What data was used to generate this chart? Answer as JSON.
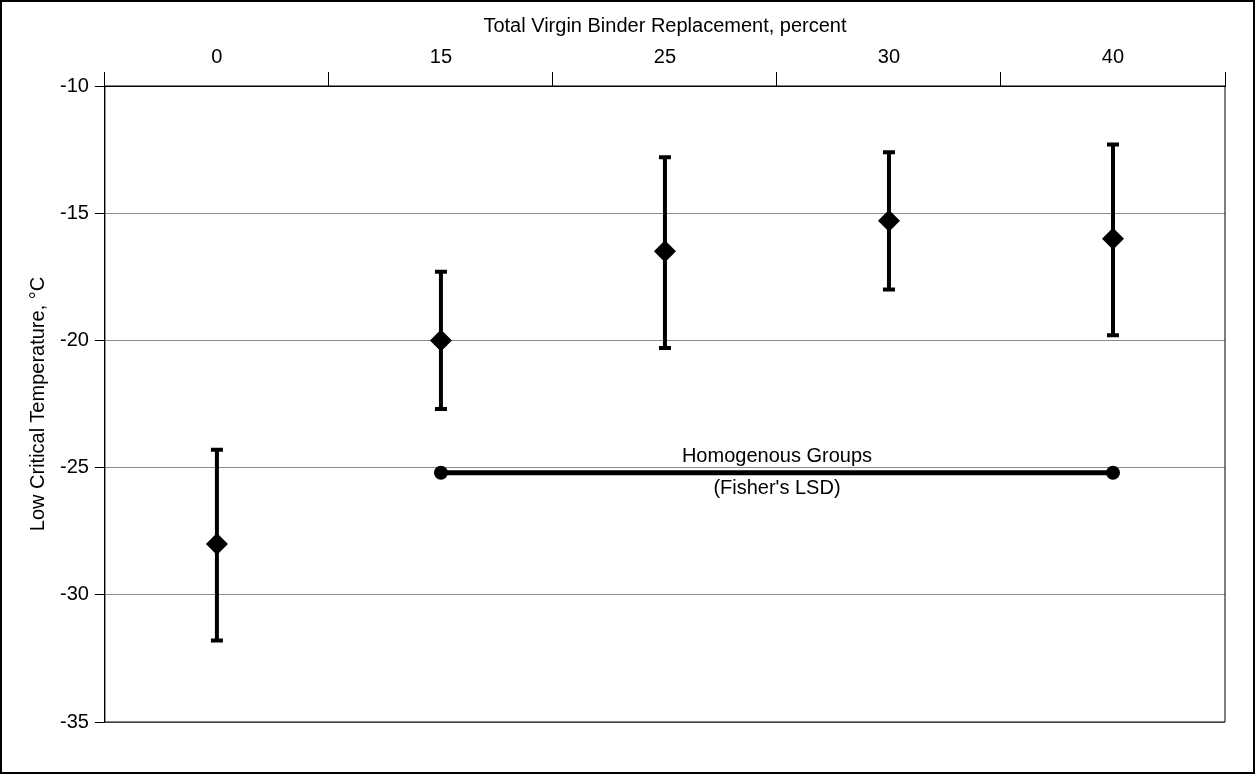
{
  "chart_data": {
    "type": "scatter",
    "xlabel": "Total Virgin Binder Replacement, percent",
    "ylabel": "Low Critical Temperature, °C",
    "categories": [
      "0",
      "15",
      "25",
      "30",
      "40"
    ],
    "series": [
      {
        "color": "#000000",
        "marker": "diamond",
        "values": [
          -28.0,
          -20.0,
          -16.5,
          -15.3,
          -16.0
        ],
        "errors": [
          [
            -31.8,
            -24.3
          ],
          [
            -22.7,
            -17.3
          ],
          [
            -20.3,
            -12.8
          ],
          [
            -18.0,
            -12.6
          ],
          [
            -19.8,
            -12.3
          ]
        ]
      },
      {
        "type": "line",
        "color": "#000000",
        "marker": "circle",
        "line_style": "solid",
        "x": [
          "15",
          "40"
        ],
        "values": [
          -25.2,
          -25.2
        ]
      }
    ],
    "annotations": [
      "Homogenous Groups",
      "(Fisher's LSD)"
    ],
    "ylim": [
      -35,
      -10
    ],
    "yticks": [
      -35,
      -30,
      -25,
      -20,
      -15,
      -10
    ],
    "grid": "y",
    "legend": false
  }
}
